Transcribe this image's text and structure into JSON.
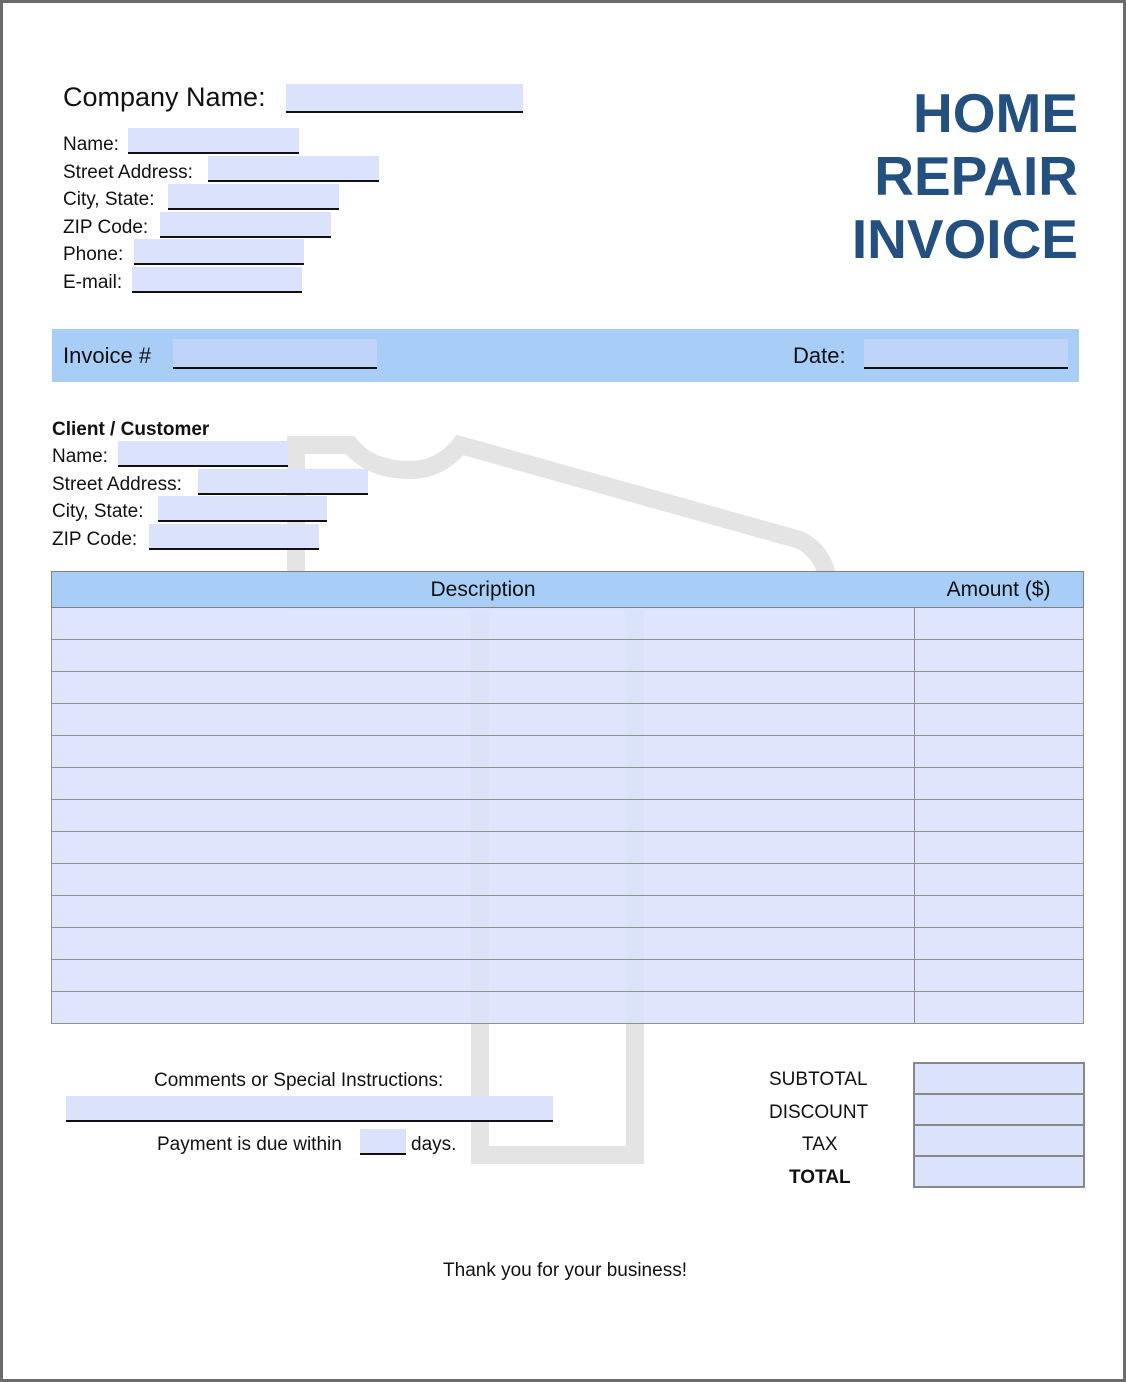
{
  "header": {
    "title_lines": [
      "HOME",
      "REPAIR",
      "INVOICE"
    ]
  },
  "company": {
    "company_name_label": "Company Name:",
    "name_label": "Name:",
    "street_label": "Street Address:",
    "city_label": "City, State:",
    "zip_label": "ZIP Code:",
    "phone_label": "Phone:",
    "email_label": "E-mail:"
  },
  "invoice_bar": {
    "invoice_label": "Invoice #",
    "date_label": "Date:"
  },
  "client": {
    "heading": "Client / Customer",
    "name_label": "Name:",
    "street_label": "Street Address:",
    "city_label": "City, State:",
    "zip_label": "ZIP Code:"
  },
  "table": {
    "columns": [
      "Description",
      "Amount ($)"
    ],
    "row_count": 13
  },
  "comments": {
    "label": "Comments or Special Instructions:",
    "payment_prefix": "Payment is due within",
    "payment_suffix": "days."
  },
  "totals": {
    "subtotal": "SUBTOTAL",
    "discount": "DISCOUNT",
    "tax": "TAX",
    "total": "TOTAL"
  },
  "footer": {
    "thanks": "Thank you for your business!"
  },
  "colors": {
    "title": "#23507e",
    "field": "#dbe3fc",
    "header_bar": "#a8cdf7"
  },
  "watermark_icon": "hammer-icon"
}
